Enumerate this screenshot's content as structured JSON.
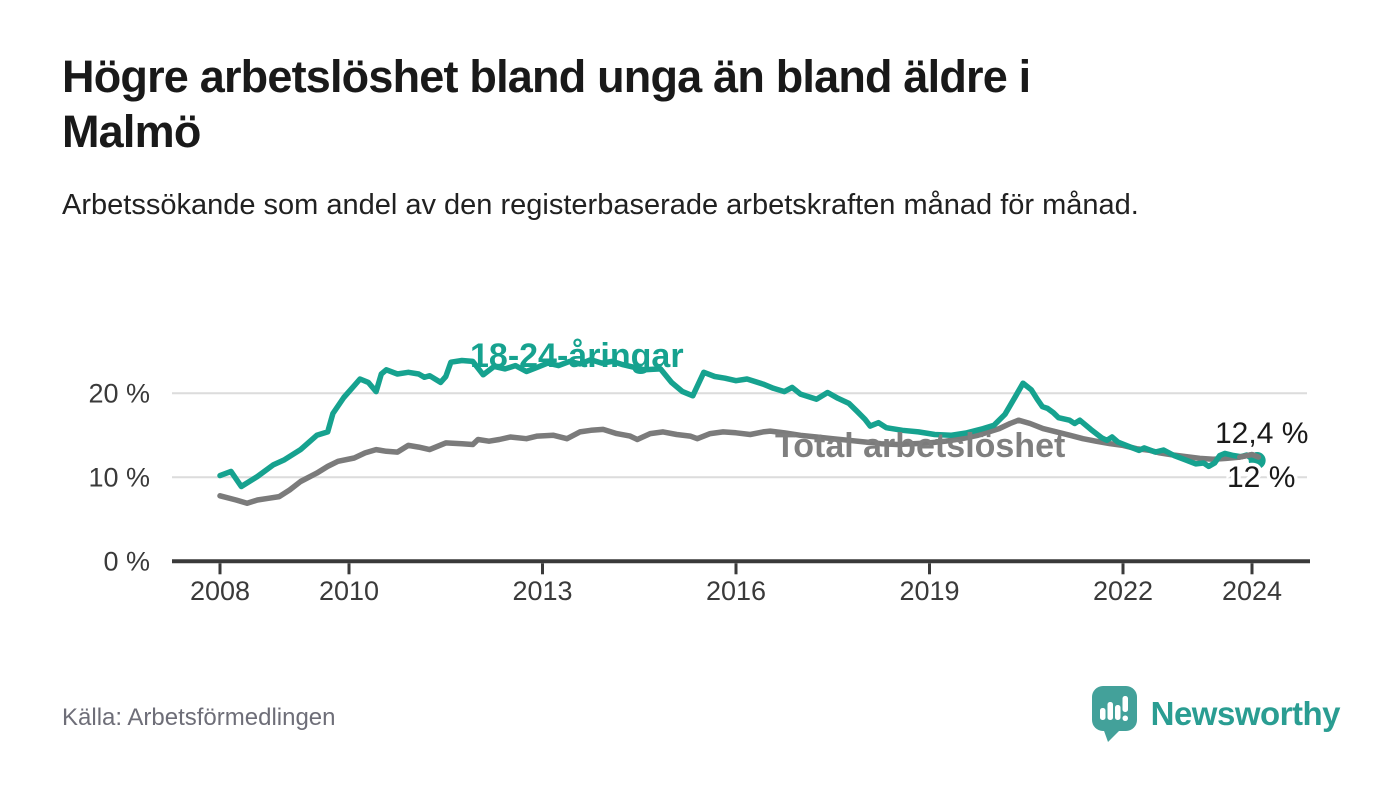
{
  "header": {
    "title": "Högre arbetslöshet bland unga än bland äldre i Malmö",
    "subtitle": "Arbetssökande som andel av den registerbaserade arbetskraften månad för månad."
  },
  "footer": {
    "source": "Källa: Arbetsförmedlingen",
    "brand": "Newsworthy"
  },
  "colors": {
    "accent_teal": "#16a28f",
    "total_gray": "#7b7b7b",
    "grid": "#dcdcdc",
    "axis": "#3a3a3a",
    "label_text": "#1a1a1a",
    "logo_teal": "#43a19a"
  },
  "chart_data": {
    "type": "line",
    "title": "Högre arbetslöshet bland unga än bland äldre i Malmö",
    "xlabel": "",
    "ylabel": "Arbetssökande som andel av den registerbaserade arbetskraften",
    "x_axis": {
      "ticks": [
        2008,
        2010,
        2013,
        2016,
        2019,
        2022,
        2024
      ],
      "labels": [
        "2008",
        "2010",
        "2013",
        "2016",
        "2019",
        "2022",
        "2024"
      ],
      "range": [
        2007.2,
        2024.9
      ]
    },
    "y_axis": {
      "ticks": [
        0,
        10,
        20
      ],
      "labels": [
        "0 %",
        "10 %",
        "20 %"
      ],
      "range": [
        0,
        28.7
      ],
      "grid": true
    },
    "series": [
      {
        "name": "18-24-åringar",
        "color": "#16a28f",
        "end_label": "12 %",
        "end_value": 12.0,
        "end_dot": true,
        "points": [
          [
            2008.0,
            10.2
          ],
          [
            2008.17,
            10.7
          ],
          [
            2008.33,
            8.9
          ],
          [
            2008.58,
            10.1
          ],
          [
            2008.83,
            11.5
          ],
          [
            2009.0,
            12.1
          ],
          [
            2009.25,
            13.3
          ],
          [
            2009.5,
            15.0
          ],
          [
            2009.67,
            15.4
          ],
          [
            2009.75,
            17.6
          ],
          [
            2009.92,
            19.5
          ],
          [
            2010.08,
            20.9
          ],
          [
            2010.17,
            21.7
          ],
          [
            2010.3,
            21.3
          ],
          [
            2010.42,
            20.2
          ],
          [
            2010.5,
            22.3
          ],
          [
            2010.58,
            22.8
          ],
          [
            2010.75,
            22.3
          ],
          [
            2010.92,
            22.5
          ],
          [
            2011.08,
            22.3
          ],
          [
            2011.17,
            21.9
          ],
          [
            2011.25,
            22.1
          ],
          [
            2011.42,
            21.3
          ],
          [
            2011.5,
            22.0
          ],
          [
            2011.58,
            23.7
          ],
          [
            2011.75,
            23.9
          ],
          [
            2011.92,
            23.8
          ],
          [
            2012.08,
            22.2
          ],
          [
            2012.25,
            23.2
          ],
          [
            2012.42,
            22.9
          ],
          [
            2012.58,
            23.3
          ],
          [
            2012.75,
            22.6
          ],
          [
            2012.92,
            23.1
          ],
          [
            2013.08,
            23.6
          ],
          [
            2013.25,
            23.3
          ],
          [
            2013.42,
            23.8
          ],
          [
            2013.58,
            23.5
          ],
          [
            2013.75,
            24.0
          ],
          [
            2013.92,
            23.6
          ],
          [
            2014.08,
            23.8
          ],
          [
            2014.25,
            23.4
          ],
          [
            2014.42,
            23.1
          ],
          [
            2014.58,
            22.8
          ],
          [
            2014.83,
            22.9
          ],
          [
            2015.0,
            21.3
          ],
          [
            2015.17,
            20.2
          ],
          [
            2015.33,
            19.7
          ],
          [
            2015.5,
            22.5
          ],
          [
            2015.67,
            22.0
          ],
          [
            2015.83,
            21.8
          ],
          [
            2016.0,
            21.5
          ],
          [
            2016.17,
            21.7
          ],
          [
            2016.42,
            21.1
          ],
          [
            2016.58,
            20.6
          ],
          [
            2016.75,
            20.2
          ],
          [
            2016.87,
            20.7
          ],
          [
            2017.0,
            19.9
          ],
          [
            2017.25,
            19.3
          ],
          [
            2017.42,
            20.1
          ],
          [
            2017.58,
            19.4
          ],
          [
            2017.75,
            18.8
          ],
          [
            2017.87,
            17.9
          ],
          [
            2018.0,
            16.9
          ],
          [
            2018.08,
            16.1
          ],
          [
            2018.21,
            16.5
          ],
          [
            2018.33,
            15.9
          ],
          [
            2018.58,
            15.6
          ],
          [
            2018.83,
            15.4
          ],
          [
            2019.08,
            15.1
          ],
          [
            2019.33,
            15.0
          ],
          [
            2019.58,
            15.3
          ],
          [
            2019.83,
            15.8
          ],
          [
            2020.0,
            16.2
          ],
          [
            2020.17,
            17.5
          ],
          [
            2020.33,
            19.6
          ],
          [
            2020.45,
            21.2
          ],
          [
            2020.58,
            20.4
          ],
          [
            2020.67,
            19.3
          ],
          [
            2020.75,
            18.4
          ],
          [
            2020.83,
            18.2
          ],
          [
            2020.92,
            17.7
          ],
          [
            2021.0,
            17.1
          ],
          [
            2021.17,
            16.8
          ],
          [
            2021.25,
            16.4
          ],
          [
            2021.33,
            16.8
          ],
          [
            2021.5,
            15.7
          ],
          [
            2021.67,
            14.7
          ],
          [
            2021.75,
            14.4
          ],
          [
            2021.83,
            14.8
          ],
          [
            2021.92,
            14.2
          ],
          [
            2022.08,
            13.7
          ],
          [
            2022.25,
            13.2
          ],
          [
            2022.33,
            13.5
          ],
          [
            2022.5,
            13.0
          ],
          [
            2022.63,
            13.25
          ],
          [
            2022.79,
            12.6
          ],
          [
            2022.96,
            12.1
          ],
          [
            2023.13,
            11.6
          ],
          [
            2023.25,
            11.7
          ],
          [
            2023.33,
            11.3
          ],
          [
            2023.42,
            11.7
          ],
          [
            2023.5,
            12.6
          ],
          [
            2023.58,
            12.85
          ],
          [
            2023.71,
            12.6
          ],
          [
            2023.83,
            12.45
          ],
          [
            2023.92,
            12.65
          ],
          [
            2024.0,
            12.2
          ],
          [
            2024.08,
            12.0
          ]
        ]
      },
      {
        "name": "Total arbetslöshet",
        "color": "#7b7b7b",
        "end_label": "12,4 %",
        "end_value": 12.4,
        "end_dot": false,
        "points": [
          [
            2008.0,
            7.8
          ],
          [
            2008.25,
            7.3
          ],
          [
            2008.42,
            6.9
          ],
          [
            2008.58,
            7.3
          ],
          [
            2008.75,
            7.5
          ],
          [
            2008.92,
            7.7
          ],
          [
            2009.08,
            8.5
          ],
          [
            2009.25,
            9.5
          ],
          [
            2009.5,
            10.5
          ],
          [
            2009.67,
            11.3
          ],
          [
            2009.83,
            11.9
          ],
          [
            2010.08,
            12.3
          ],
          [
            2010.25,
            12.9
          ],
          [
            2010.42,
            13.3
          ],
          [
            2010.58,
            13.1
          ],
          [
            2010.75,
            13.0
          ],
          [
            2010.92,
            13.8
          ],
          [
            2011.08,
            13.6
          ],
          [
            2011.25,
            13.3
          ],
          [
            2011.5,
            14.1
          ],
          [
            2011.75,
            14.0
          ],
          [
            2011.92,
            13.9
          ],
          [
            2012.0,
            14.5
          ],
          [
            2012.17,
            14.3
          ],
          [
            2012.33,
            14.5
          ],
          [
            2012.5,
            14.8
          ],
          [
            2012.75,
            14.6
          ],
          [
            2012.92,
            14.9
          ],
          [
            2013.17,
            15.0
          ],
          [
            2013.38,
            14.6
          ],
          [
            2013.58,
            15.4
          ],
          [
            2013.75,
            15.6
          ],
          [
            2013.94,
            15.7
          ],
          [
            2014.15,
            15.2
          ],
          [
            2014.36,
            14.9
          ],
          [
            2014.47,
            14.5
          ],
          [
            2014.67,
            15.2
          ],
          [
            2014.87,
            15.4
          ],
          [
            2015.08,
            15.1
          ],
          [
            2015.29,
            14.9
          ],
          [
            2015.4,
            14.6
          ],
          [
            2015.6,
            15.2
          ],
          [
            2015.8,
            15.4
          ],
          [
            2016.0,
            15.3
          ],
          [
            2016.22,
            15.1
          ],
          [
            2016.42,
            15.4
          ],
          [
            2016.53,
            15.5
          ],
          [
            2016.75,
            15.3
          ],
          [
            2017.0,
            15.0
          ],
          [
            2017.25,
            14.8
          ],
          [
            2017.5,
            14.6
          ],
          [
            2017.75,
            14.4
          ],
          [
            2018.0,
            14.2
          ],
          [
            2018.25,
            14.0
          ],
          [
            2018.5,
            13.9
          ],
          [
            2018.75,
            14.0
          ],
          [
            2019.0,
            14.1
          ],
          [
            2019.25,
            14.3
          ],
          [
            2019.5,
            14.6
          ],
          [
            2019.75,
            15.0
          ],
          [
            2019.92,
            15.4
          ],
          [
            2020.08,
            15.8
          ],
          [
            2020.25,
            16.4
          ],
          [
            2020.38,
            16.8
          ],
          [
            2020.56,
            16.4
          ],
          [
            2020.76,
            15.8
          ],
          [
            2020.97,
            15.4
          ],
          [
            2021.18,
            15.0
          ],
          [
            2021.38,
            14.6
          ],
          [
            2021.58,
            14.3
          ],
          [
            2021.8,
            14.0
          ],
          [
            2022.0,
            13.8
          ],
          [
            2022.21,
            13.4
          ],
          [
            2022.42,
            13.2
          ],
          [
            2022.57,
            12.9
          ],
          [
            2022.78,
            12.65
          ],
          [
            2022.99,
            12.45
          ],
          [
            2023.19,
            12.25
          ],
          [
            2023.4,
            12.15
          ],
          [
            2023.6,
            12.25
          ],
          [
            2023.81,
            12.4
          ],
          [
            2024.0,
            12.7
          ],
          [
            2024.1,
            12.4
          ]
        ]
      }
    ],
    "legend_position": "inline-labels",
    "grid": "horizontal-only"
  }
}
